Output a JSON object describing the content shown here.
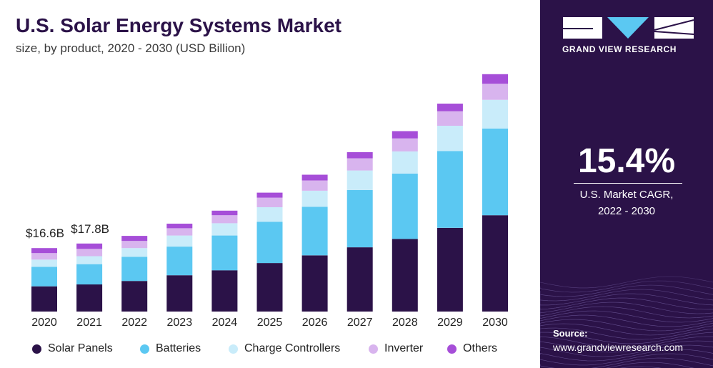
{
  "header": {
    "title": "U.S. Solar Energy Systems Market",
    "subtitle": "size, by product, 2020 - 2030 (USD Billion)"
  },
  "sidebar": {
    "brand": "GRAND VIEW RESEARCH",
    "cagr_value": "15.4%",
    "cagr_label_line1": "U.S. Market CAGR,",
    "cagr_label_line2": "2022 - 2030",
    "source_label": "Source:",
    "source_url": "www.grandviewresearch.com"
  },
  "colors": {
    "panel_background": "#2b1248",
    "title": "#2b1248"
  },
  "chart_data": {
    "type": "bar",
    "stacked": true,
    "categories": [
      "2020",
      "2021",
      "2022",
      "2023",
      "2024",
      "2025",
      "2026",
      "2027",
      "2028",
      "2029",
      "2030"
    ],
    "series": [
      {
        "name": "Solar Panels",
        "color": "#2b1248",
        "values": [
          6.6,
          7.1,
          8.0,
          9.5,
          10.8,
          12.7,
          14.7,
          16.8,
          19.0,
          21.9,
          25.2
        ]
      },
      {
        "name": "Batteries",
        "color": "#5bc8f2",
        "values": [
          5.1,
          5.3,
          6.3,
          7.5,
          9.1,
          10.8,
          12.7,
          15.0,
          17.1,
          20.1,
          22.7
        ]
      },
      {
        "name": "Charge Controllers",
        "color": "#c9ecfa",
        "values": [
          1.9,
          2.1,
          2.3,
          2.9,
          3.2,
          3.8,
          4.2,
          5.1,
          5.8,
          6.6,
          7.5
        ]
      },
      {
        "name": "Inverter",
        "color": "#d8b4ee",
        "values": [
          1.7,
          1.9,
          1.9,
          1.9,
          2.1,
          2.5,
          2.7,
          3.2,
          3.4,
          3.8,
          4.2
        ]
      },
      {
        "name": "Others",
        "color": "#a64ed8",
        "values": [
          1.3,
          1.4,
          1.3,
          1.2,
          1.2,
          1.3,
          1.5,
          1.6,
          1.9,
          2.0,
          2.5
        ]
      }
    ],
    "annotations": [
      {
        "category": "2020",
        "text": "$16.6B"
      },
      {
        "category": "2021",
        "text": "$17.8B"
      }
    ],
    "ylim": [
      0,
      63
    ],
    "xlabel": "",
    "ylabel": "",
    "grid": false,
    "legend": "bottom"
  }
}
